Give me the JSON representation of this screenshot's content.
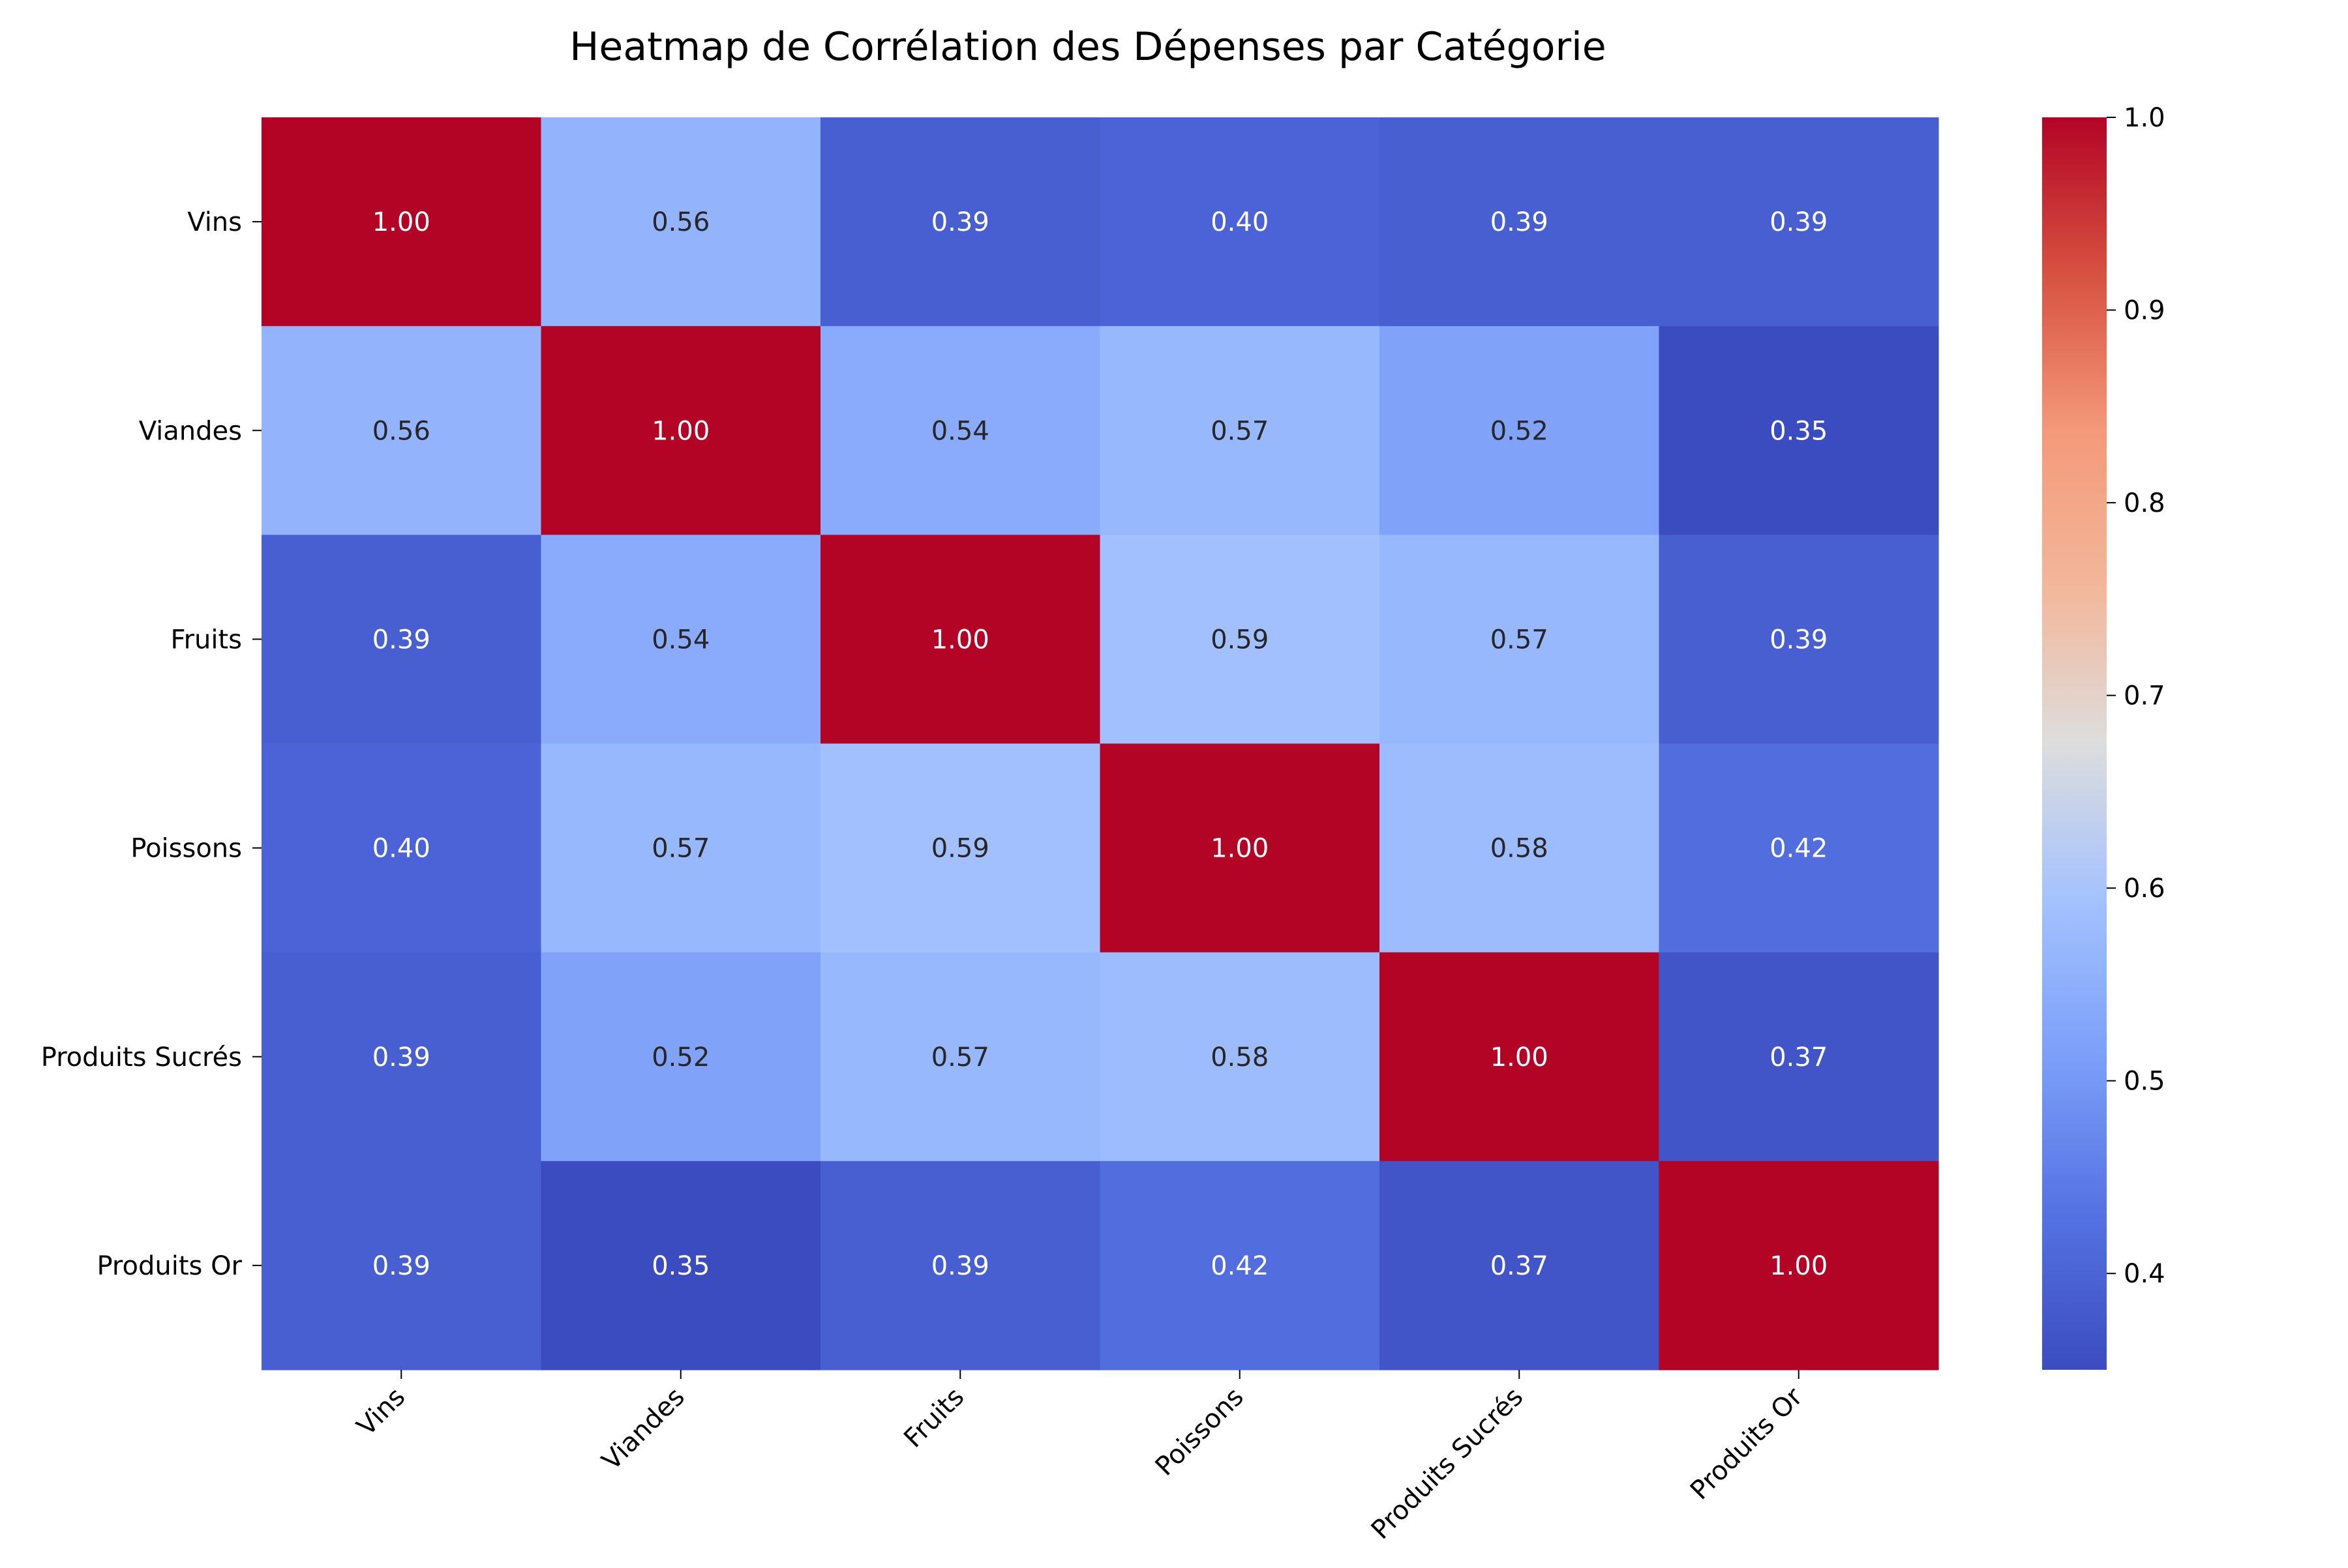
{
  "chart_data": {
    "type": "heatmap",
    "title": "Heatmap de Corrélation des Dépenses par Catégorie",
    "xlabel": "",
    "ylabel": "",
    "rows": [
      "Vins",
      "Viandes",
      "Fruits",
      "Poissons",
      "Produits Sucrés",
      "Produits Or"
    ],
    "columns": [
      "Vins",
      "Viandes",
      "Fruits",
      "Poissons",
      "Produits Sucrés",
      "Produits Or"
    ],
    "values": [
      [
        1.0,
        0.56,
        0.39,
        0.4,
        0.39,
        0.39
      ],
      [
        0.56,
        1.0,
        0.54,
        0.57,
        0.52,
        0.35
      ],
      [
        0.39,
        0.54,
        1.0,
        0.59,
        0.57,
        0.39
      ],
      [
        0.4,
        0.57,
        0.59,
        1.0,
        0.58,
        0.42
      ],
      [
        0.39,
        0.52,
        0.57,
        0.58,
        1.0,
        0.37
      ],
      [
        0.39,
        0.35,
        0.39,
        0.42,
        0.37,
        1.0
      ]
    ],
    "value_format": "0.00",
    "colormap": "coolwarm",
    "colorbar": {
      "range": [
        0.35,
        1.0
      ],
      "ticks": [
        0.4,
        0.5,
        0.6,
        0.7,
        0.8,
        0.9,
        1.0
      ],
      "tick_labels": [
        "0.4",
        "0.5",
        "0.6",
        "0.7",
        "0.8",
        "0.9",
        "1.0"
      ]
    },
    "grid": false,
    "legend": "colorbar-right"
  }
}
